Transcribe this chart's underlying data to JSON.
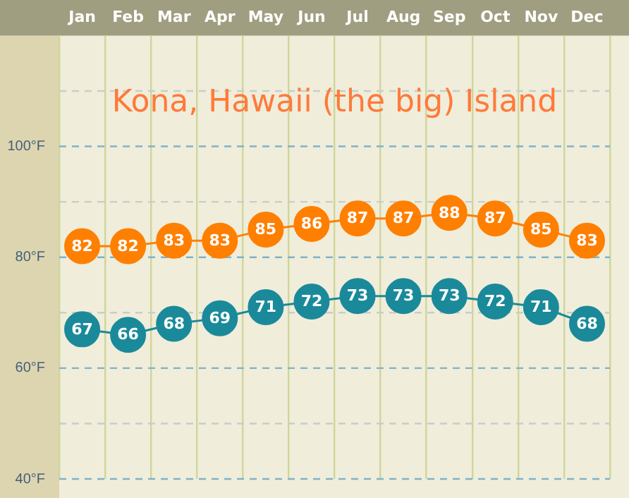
{
  "chart_data": {
    "type": "line",
    "title": "Kona, Hawaii (the big) Island",
    "categories": [
      "Jan",
      "Feb",
      "Mar",
      "Apr",
      "May",
      "Jun",
      "Jul",
      "Aug",
      "Sep",
      "Oct",
      "Nov",
      "Dec"
    ],
    "series": [
      {
        "color": "#ff7f00",
        "values": [
          82,
          82,
          83,
          83,
          85,
          86,
          87,
          87,
          88,
          87,
          85,
          83
        ]
      },
      {
        "color": "#1a8a9a",
        "values": [
          67,
          66,
          68,
          69,
          71,
          72,
          73,
          73,
          73,
          72,
          71,
          68
        ]
      }
    ],
    "ylim": [
      40,
      120
    ],
    "yticks": [
      {
        "value": 40,
        "label": "40°F"
      },
      {
        "value": 50,
        "label": null
      },
      {
        "value": 60,
        "label": "60°F"
      },
      {
        "value": 70,
        "label": null
      },
      {
        "value": 80,
        "label": "80°F"
      },
      {
        "value": 90,
        "label": null
      },
      {
        "value": 100,
        "label": "100°F"
      },
      {
        "value": 110,
        "label": null
      }
    ],
    "grid": true,
    "legend": false,
    "marker": "circle",
    "line_style": "solid",
    "data_labels": true
  }
}
